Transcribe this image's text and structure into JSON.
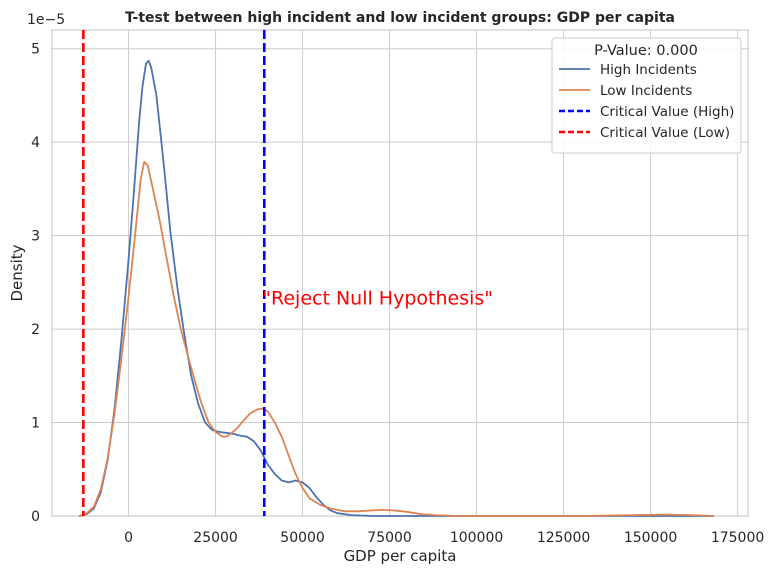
{
  "chart_data": {
    "type": "line",
    "title": "T-test between high incident and low incident groups: GDP per capita",
    "xlabel": "GDP per capita",
    "ylabel": "Density",
    "y_offset_label": "1e−5",
    "xlim": [
      -22000,
      178000
    ],
    "ylim": [
      0,
      5.2
    ],
    "x_ticks": [
      0,
      25000,
      50000,
      75000,
      100000,
      125000,
      150000,
      175000
    ],
    "y_ticks": [
      0,
      1,
      2,
      3,
      4,
      5
    ],
    "grid": true,
    "series": [
      {
        "name": "High Incidents",
        "color": "#4c72b0",
        "points": [
          [
            -14000,
            0.0
          ],
          [
            -12000,
            0.02
          ],
          [
            -10000,
            0.08
          ],
          [
            -8000,
            0.25
          ],
          [
            -6000,
            0.6
          ],
          [
            -4000,
            1.15
          ],
          [
            -2000,
            1.9
          ],
          [
            0,
            2.75
          ],
          [
            1500,
            3.45
          ],
          [
            3000,
            4.2
          ],
          [
            4000,
            4.6
          ],
          [
            5000,
            4.84
          ],
          [
            5800,
            4.87
          ],
          [
            6500,
            4.8
          ],
          [
            8000,
            4.5
          ],
          [
            10000,
            3.8
          ],
          [
            12000,
            3.05
          ],
          [
            14000,
            2.45
          ],
          [
            16000,
            1.95
          ],
          [
            18000,
            1.5
          ],
          [
            20000,
            1.2
          ],
          [
            22000,
            1.0
          ],
          [
            24000,
            0.92
          ],
          [
            26000,
            0.9
          ],
          [
            28000,
            0.89
          ],
          [
            30000,
            0.88
          ],
          [
            32000,
            0.86
          ],
          [
            34000,
            0.85
          ],
          [
            36000,
            0.8
          ],
          [
            38000,
            0.7
          ],
          [
            40000,
            0.55
          ],
          [
            42000,
            0.45
          ],
          [
            44000,
            0.38
          ],
          [
            46000,
            0.36
          ],
          [
            48000,
            0.38
          ],
          [
            50000,
            0.36
          ],
          [
            52000,
            0.3
          ],
          [
            54000,
            0.2
          ],
          [
            56000,
            0.12
          ],
          [
            58000,
            0.06
          ],
          [
            60000,
            0.03
          ],
          [
            64000,
            0.01
          ],
          [
            70000,
            0.0
          ],
          [
            100000,
            0.0
          ],
          [
            150000,
            0.0
          ],
          [
            168000,
            0.0
          ]
        ]
      },
      {
        "name": "Low Incidents",
        "color": "#dd8452",
        "points": [
          [
            -14000,
            0.0
          ],
          [
            -12000,
            0.03
          ],
          [
            -10000,
            0.1
          ],
          [
            -8000,
            0.28
          ],
          [
            -6000,
            0.62
          ],
          [
            -4000,
            1.1
          ],
          [
            -2000,
            1.7
          ],
          [
            0,
            2.35
          ],
          [
            2000,
            3.05
          ],
          [
            3500,
            3.6
          ],
          [
            4500,
            3.79
          ],
          [
            5500,
            3.75
          ],
          [
            7000,
            3.5
          ],
          [
            9000,
            3.15
          ],
          [
            11000,
            2.75
          ],
          [
            13000,
            2.35
          ],
          [
            15000,
            2.0
          ],
          [
            17000,
            1.72
          ],
          [
            19000,
            1.45
          ],
          [
            21000,
            1.2
          ],
          [
            23000,
            1.0
          ],
          [
            25000,
            0.9
          ],
          [
            27000,
            0.85
          ],
          [
            28000,
            0.85
          ],
          [
            29000,
            0.87
          ],
          [
            31000,
            0.93
          ],
          [
            33000,
            1.02
          ],
          [
            35000,
            1.1
          ],
          [
            37000,
            1.14
          ],
          [
            38500,
            1.15
          ],
          [
            40000,
            1.12
          ],
          [
            42000,
            1.0
          ],
          [
            44000,
            0.85
          ],
          [
            46000,
            0.65
          ],
          [
            48000,
            0.45
          ],
          [
            50000,
            0.3
          ],
          [
            52000,
            0.19
          ],
          [
            55000,
            0.12
          ],
          [
            58000,
            0.08
          ],
          [
            62000,
            0.05
          ],
          [
            66000,
            0.05
          ],
          [
            70000,
            0.06
          ],
          [
            73000,
            0.065
          ],
          [
            76000,
            0.06
          ],
          [
            80000,
            0.045
          ],
          [
            84000,
            0.02
          ],
          [
            88000,
            0.01
          ],
          [
            95000,
            0.0
          ],
          [
            130000,
            0.0
          ],
          [
            145000,
            0.01
          ],
          [
            155000,
            0.015
          ],
          [
            162000,
            0.01
          ],
          [
            168000,
            0.0
          ]
        ]
      }
    ],
    "critical_values": [
      {
        "name": "Critical Value (High)",
        "x": 39000,
        "color": "#0000ff"
      },
      {
        "name": "Critical Value (Low)",
        "x": -13000,
        "color": "#ff0000"
      }
    ],
    "legend": {
      "title": "P-Value: 0.000",
      "placement": "top-right"
    },
    "annotation": {
      "text": "\"Reject Null Hypothesis\"",
      "x": 39000,
      "y": 2.5,
      "color": "#ff0000"
    }
  }
}
